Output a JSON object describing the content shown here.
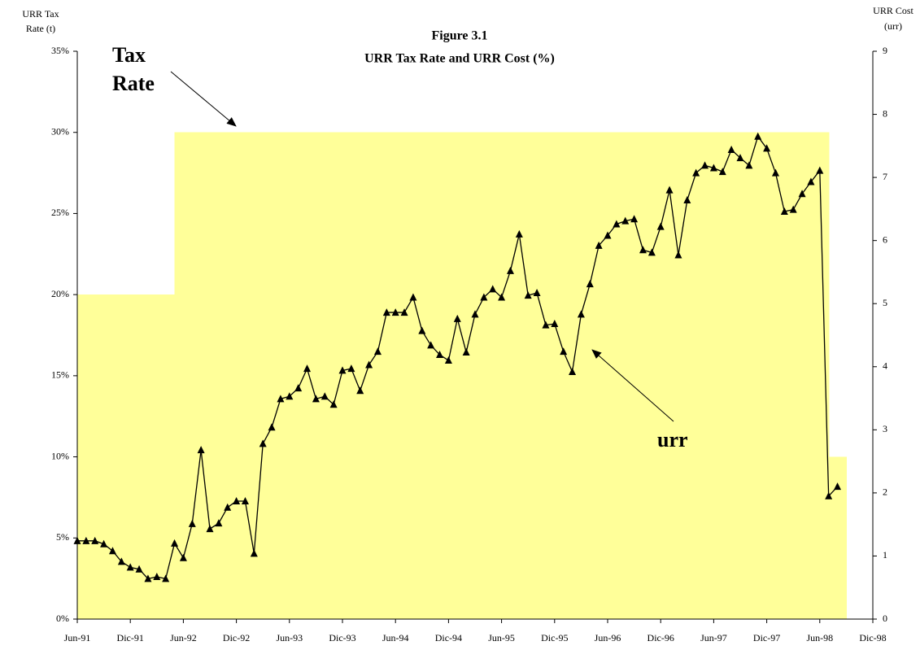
{
  "chart_data": {
    "type": "line",
    "title": [
      "Figure 3.1",
      "URR Tax Rate and URR Cost (%)"
    ],
    "y_label": [
      "URR Tax",
      "Rate (t)"
    ],
    "y2_label": [
      "URR Cost",
      "(urr)"
    ],
    "annotations": [
      {
        "text": "Tax"
      },
      {
        "text": "Rate"
      },
      {
        "text": "urr"
      }
    ],
    "categories": [
      "Jun-91",
      null,
      null,
      null,
      null,
      null,
      "Dic-91",
      null,
      null,
      null,
      null,
      null,
      "Jun-92",
      null,
      null,
      null,
      null,
      null,
      "Dic-92",
      null,
      null,
      null,
      null,
      null,
      "Jun-93",
      null,
      null,
      null,
      null,
      null,
      "Dic-93",
      null,
      null,
      null,
      null,
      null,
      "Jun-94",
      null,
      null,
      null,
      null,
      null,
      "Dic-94",
      null,
      null,
      null,
      null,
      null,
      "Jun-95",
      null,
      null,
      null,
      null,
      null,
      "Dic-95",
      null,
      null,
      null,
      null,
      null,
      "Jun-96",
      null,
      null,
      null,
      null,
      null,
      "Dic-96",
      null,
      null,
      null,
      null,
      null,
      "Jun-97",
      null,
      null,
      null,
      null,
      null,
      "Dic-97",
      null,
      null,
      null,
      null,
      null,
      "Jun-98",
      null,
      null,
      null,
      null,
      null,
      "Dic-98"
    ],
    "series": [
      {
        "type": "area",
        "color": "#ffff99",
        "values": [
          20,
          20,
          20,
          20,
          20,
          20,
          20,
          20,
          20,
          20,
          20,
          30,
          30,
          30,
          30,
          30,
          30,
          30,
          30,
          30,
          30,
          30,
          30,
          30,
          30,
          30,
          30,
          30,
          30,
          30,
          30,
          30,
          30,
          30,
          30,
          30,
          30,
          30,
          30,
          30,
          30,
          30,
          30,
          30,
          30,
          30,
          30,
          30,
          30,
          30,
          30,
          30,
          30,
          30,
          30,
          30,
          30,
          30,
          30,
          30,
          30,
          30,
          30,
          30,
          30,
          30,
          30,
          30,
          30,
          30,
          30,
          30,
          30,
          30,
          30,
          30,
          30,
          30,
          30,
          30,
          30,
          30,
          30,
          30,
          30,
          10,
          10,
          null,
          null,
          null,
          null
        ]
      },
      {
        "type": "line",
        "axis": "y2",
        "color": "#000000",
        "values": [
          1.24,
          1.24,
          1.24,
          1.19,
          1.08,
          0.91,
          0.82,
          0.79,
          0.64,
          0.67,
          0.64,
          1.2,
          0.97,
          1.51,
          2.68,
          1.43,
          1.52,
          1.77,
          1.87,
          1.87,
          1.04,
          2.78,
          3.04,
          3.49,
          3.53,
          3.66,
          3.97,
          3.49,
          3.53,
          3.4,
          3.94,
          3.97,
          3.62,
          4.03,
          4.24,
          4.86,
          4.86,
          4.86,
          5.1,
          4.57,
          4.34,
          4.19,
          4.1,
          4.76,
          4.23,
          4.83,
          5.1,
          5.23,
          5.1,
          5.52,
          6.1,
          5.13,
          5.17,
          4.66,
          4.68,
          4.24,
          3.92,
          4.83,
          5.31,
          5.92,
          6.08,
          6.26,
          6.31,
          6.34,
          5.85,
          5.81,
          6.22,
          6.8,
          5.77,
          6.64,
          7.07,
          7.19,
          7.15,
          7.09,
          7.44,
          7.31,
          7.19,
          7.65,
          7.46,
          7.07,
          6.46,
          6.49,
          6.74,
          6.93,
          7.11,
          1.95,
          2.1,
          null,
          null,
          null,
          null
        ]
      }
    ],
    "ylim": [
      0,
      35
    ],
    "yticks": [
      {
        "value": 0,
        "label": "0%"
      },
      {
        "value": 5,
        "label": "5%"
      },
      {
        "value": 10,
        "label": "10%"
      },
      {
        "value": 15,
        "label": "15%"
      },
      {
        "value": 20,
        "label": "20%"
      },
      {
        "value": 25,
        "label": "25%"
      },
      {
        "value": 30,
        "label": "30%"
      },
      {
        "value": 35,
        "label": "35%"
      }
    ],
    "y2lim": [
      0,
      9
    ],
    "y2ticks": [
      0,
      1,
      2,
      3,
      4,
      5,
      6,
      7,
      8,
      9
    ]
  }
}
